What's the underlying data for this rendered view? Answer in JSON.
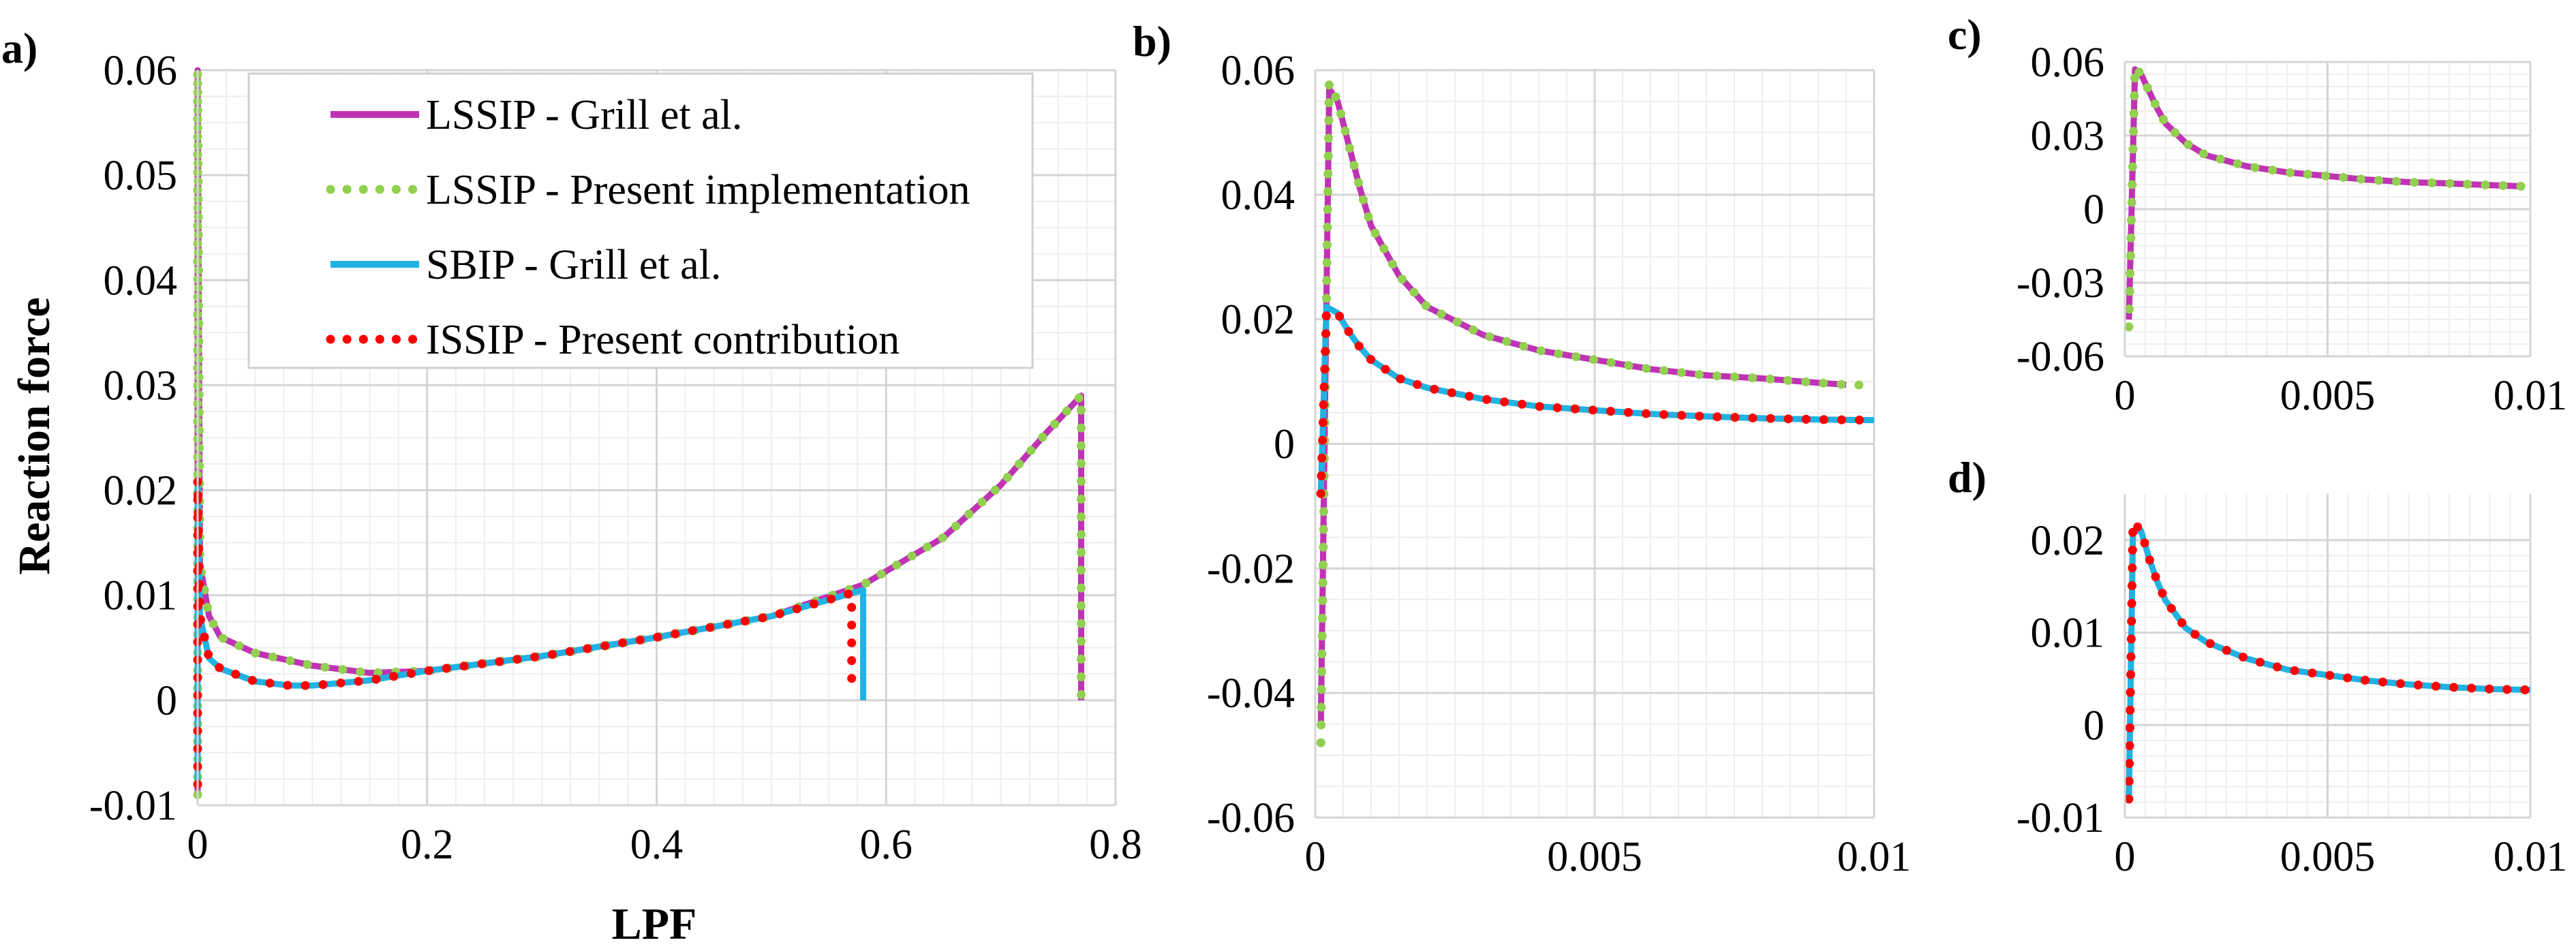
{
  "chart_data": [
    {
      "panel": "a)",
      "type": "line",
      "xlabel": "LPF",
      "ylabel": "Reaction force",
      "xlim": [
        0,
        0.8
      ],
      "ylim": [
        -0.01,
        0.06
      ],
      "xticks": [
        0,
        0.2,
        0.4,
        0.6,
        0.8
      ],
      "xtick_labels": [
        "0",
        "0.2",
        "0.4",
        "0.6",
        "0.8"
      ],
      "yticks": [
        -0.01,
        0,
        0.01,
        0.02,
        0.03,
        0.04,
        0.05,
        0.06
      ],
      "ytick_labels": [
        "-0.01",
        "0",
        "0.01",
        "0.02",
        "0.03",
        "0.04",
        "0.05",
        "0.06"
      ],
      "grid": true,
      "legend": {
        "position": "top-left",
        "entries": [
          {
            "label": "LSSIP - Grill et al.",
            "color": "#c032b5",
            "style": "solid"
          },
          {
            "label": "LSSIP - Present implementation",
            "color": "#92d050",
            "style": "dotted"
          },
          {
            "label": "SBIP - Grill et al.",
            "color": "#1fb2e3",
            "style": "solid"
          },
          {
            "label": "ISSIP - Present contribution",
            "color": "#ff0000",
            "style": "dotted"
          }
        ]
      },
      "series": [
        {
          "name": "LSSIP - Grill et al.",
          "color": "#c032b5",
          "style": "solid",
          "x": [
            0,
            0,
            0.002,
            0.01,
            0.02,
            0.05,
            0.1,
            0.15,
            0.2,
            0.3,
            0.4,
            0.5,
            0.58,
            0.65,
            0.7,
            0.74,
            0.77,
            0.77
          ],
          "y": [
            -0.009,
            0.06,
            0.013,
            0.008,
            0.006,
            0.0045,
            0.0033,
            0.0026,
            0.0028,
            0.0042,
            0.006,
            0.008,
            0.011,
            0.0155,
            0.0205,
            0.0255,
            0.029,
            0
          ]
        },
        {
          "name": "LSSIP - Present implementation",
          "color": "#92d050",
          "style": "dotted",
          "x": [
            0,
            0,
            0.002,
            0.01,
            0.02,
            0.05,
            0.1,
            0.15,
            0.2,
            0.3,
            0.4,
            0.5,
            0.58,
            0.65,
            0.7,
            0.74,
            0.77,
            0.77
          ],
          "y": [
            -0.009,
            0.06,
            0.013,
            0.008,
            0.006,
            0.0045,
            0.0033,
            0.0026,
            0.0028,
            0.0042,
            0.006,
            0.008,
            0.011,
            0.0155,
            0.0205,
            0.0255,
            0.029,
            0
          ]
        },
        {
          "name": "SBIP - Grill et al.",
          "color": "#1fb2e3",
          "style": "solid",
          "x": [
            0,
            0,
            0.002,
            0.01,
            0.02,
            0.05,
            0.08,
            0.1,
            0.15,
            0.2,
            0.3,
            0.4,
            0.5,
            0.58,
            0.58
          ],
          "y": [
            -0.008,
            0.021,
            0.008,
            0.004,
            0.003,
            0.0018,
            0.0014,
            0.0014,
            0.0019,
            0.0028,
            0.0042,
            0.006,
            0.008,
            0.0105,
            0
          ]
        },
        {
          "name": "ISSIP - Present contribution",
          "color": "#ff0000",
          "style": "dotted",
          "x": [
            0,
            0,
            0.002,
            0.01,
            0.02,
            0.05,
            0.08,
            0.1,
            0.15,
            0.2,
            0.3,
            0.4,
            0.5,
            0.57,
            0.57
          ],
          "y": [
            -0.008,
            0.021,
            0.008,
            0.004,
            0.003,
            0.0018,
            0.0014,
            0.0014,
            0.0019,
            0.0028,
            0.0042,
            0.006,
            0.008,
            0.0102,
            0.0015
          ]
        }
      ]
    },
    {
      "panel": "b)",
      "type": "line",
      "xlim": [
        0,
        0.01
      ],
      "ylim": [
        -0.06,
        0.06
      ],
      "xticks": [
        0,
        0.005,
        0.01
      ],
      "xtick_labels": [
        "0",
        "0.005",
        "0.01"
      ],
      "yticks": [
        -0.06,
        -0.04,
        -0.02,
        0,
        0.02,
        0.04,
        0.06
      ],
      "ytick_labels": [
        "-0.06",
        "-0.04",
        "-0.02",
        "0",
        "0.02",
        "0.04",
        "0.06"
      ],
      "grid": true,
      "series": [
        {
          "name": "LSSIP - Grill et al.",
          "color": "#c032b5",
          "style": "solid",
          "x": [
            0.0001,
            0.00025,
            0.0004,
            0.0006,
            0.0008,
            0.001,
            0.0015,
            0.002,
            0.003,
            0.004,
            0.005,
            0.006,
            0.007,
            0.008,
            0.009,
            0.0095
          ],
          "y": [
            -0.045,
            0.057,
            0.055,
            0.048,
            0.041,
            0.035,
            0.027,
            0.022,
            0.0175,
            0.015,
            0.0135,
            0.012,
            0.011,
            0.0105,
            0.0098,
            0.0095
          ]
        },
        {
          "name": "LSSIP - Present implementation",
          "color": "#92d050",
          "style": "dotted",
          "x": [
            0.0001,
            0.00025,
            0.0004,
            0.0006,
            0.0008,
            0.001,
            0.0015,
            0.002,
            0.003,
            0.004,
            0.005,
            0.006,
            0.007,
            0.008,
            0.009,
            0.0095,
            0.01
          ],
          "y": [
            -0.048,
            0.058,
            0.055,
            0.048,
            0.041,
            0.035,
            0.027,
            0.022,
            0.0175,
            0.015,
            0.0135,
            0.012,
            0.011,
            0.0105,
            0.0098,
            0.0095,
            0.0094
          ]
        },
        {
          "name": "SBIP - Grill et al.",
          "color": "#1fb2e3",
          "style": "solid",
          "x": [
            0.0001,
            0.0002,
            0.0004,
            0.0006,
            0.0008,
            0.001,
            0.0015,
            0.002,
            0.003,
            0.004,
            0.005,
            0.006,
            0.007,
            0.008,
            0.009,
            0.01
          ],
          "y": [
            -0.008,
            0.022,
            0.021,
            0.018,
            0.0155,
            0.0135,
            0.0105,
            0.009,
            0.0072,
            0.006,
            0.0054,
            0.0048,
            0.0044,
            0.0041,
            0.0039,
            0.0038
          ]
        },
        {
          "name": "ISSIP - Present contribution",
          "color": "#ff0000",
          "style": "dotted",
          "x": [
            0.0001,
            0.0002,
            0.0004,
            0.0006,
            0.0008,
            0.001,
            0.0015,
            0.002,
            0.003,
            0.004,
            0.005,
            0.006,
            0.007,
            0.008,
            0.009,
            0.01
          ],
          "y": [
            -0.008,
            0.021,
            0.021,
            0.018,
            0.0155,
            0.0135,
            0.0105,
            0.009,
            0.0072,
            0.006,
            0.0054,
            0.0048,
            0.0044,
            0.0041,
            0.0039,
            0.0038
          ]
        }
      ]
    },
    {
      "panel": "c)",
      "type": "line",
      "xlim": [
        0,
        0.01
      ],
      "ylim": [
        -0.06,
        0.06
      ],
      "xticks": [
        0,
        0.005,
        0.01
      ],
      "xtick_labels": [
        "0",
        "0.005",
        "0.01"
      ],
      "yticks": [
        -0.06,
        -0.03,
        0,
        0.03,
        0.06
      ],
      "ytick_labels": [
        "-0.06",
        "-0.03",
        "0",
        "0.03",
        "0.06"
      ],
      "grid": true,
      "series": [
        {
          "name": "LSSIP - Grill et al.",
          "color": "#c032b5",
          "style": "solid",
          "x": [
            0.0001,
            0.00025,
            0.0004,
            0.0006,
            0.0008,
            0.001,
            0.0015,
            0.002,
            0.003,
            0.004,
            0.005,
            0.006,
            0.007,
            0.008,
            0.009,
            0.0098
          ],
          "y": [
            -0.045,
            0.057,
            0.055,
            0.048,
            0.041,
            0.035,
            0.027,
            0.022,
            0.0175,
            0.015,
            0.0135,
            0.012,
            0.011,
            0.0105,
            0.0098,
            0.0093
          ]
        },
        {
          "name": "LSSIP - Present implementation",
          "color": "#92d050",
          "style": "dotted",
          "x": [
            0.0001,
            0.00025,
            0.0004,
            0.0006,
            0.0008,
            0.001,
            0.0015,
            0.002,
            0.003,
            0.004,
            0.005,
            0.006,
            0.007,
            0.008,
            0.009,
            0.0098
          ],
          "y": [
            -0.048,
            0.058,
            0.055,
            0.048,
            0.041,
            0.035,
            0.027,
            0.022,
            0.0175,
            0.015,
            0.0135,
            0.012,
            0.011,
            0.0105,
            0.0098,
            0.0093
          ]
        }
      ]
    },
    {
      "panel": "d)",
      "type": "line",
      "xlim": [
        0,
        0.01
      ],
      "ylim": [
        -0.01,
        0.025
      ],
      "xticks": [
        0,
        0.005,
        0.01
      ],
      "xtick_labels": [
        "0",
        "0.005",
        "0.01"
      ],
      "yticks": [
        -0.01,
        0,
        0.01,
        0.02
      ],
      "ytick_labels": [
        "-0.01",
        "0",
        "0.01",
        "0.02"
      ],
      "grid": true,
      "series": [
        {
          "name": "SBIP - Grill et al.",
          "color": "#1fb2e3",
          "style": "solid",
          "x": [
            0.0001,
            0.0002,
            0.0004,
            0.0006,
            0.0008,
            0.001,
            0.0015,
            0.002,
            0.003,
            0.004,
            0.005,
            0.006,
            0.007,
            0.008,
            0.009,
            0.01
          ],
          "y": [
            -0.008,
            0.021,
            0.021,
            0.018,
            0.0155,
            0.0135,
            0.0105,
            0.009,
            0.0072,
            0.006,
            0.0054,
            0.0048,
            0.0044,
            0.0041,
            0.0039,
            0.0038
          ]
        },
        {
          "name": "ISSIP - Present contribution",
          "color": "#ff0000",
          "style": "dotted",
          "x": [
            0.0001,
            0.0002,
            0.0004,
            0.0006,
            0.0008,
            0.001,
            0.0015,
            0.002,
            0.003,
            0.004,
            0.005,
            0.006,
            0.007,
            0.008,
            0.009,
            0.01
          ],
          "y": [
            -0.008,
            0.022,
            0.021,
            0.018,
            0.0155,
            0.0135,
            0.0105,
            0.009,
            0.0072,
            0.006,
            0.0054,
            0.0048,
            0.0044,
            0.0041,
            0.0039,
            0.0038
          ]
        }
      ]
    }
  ]
}
